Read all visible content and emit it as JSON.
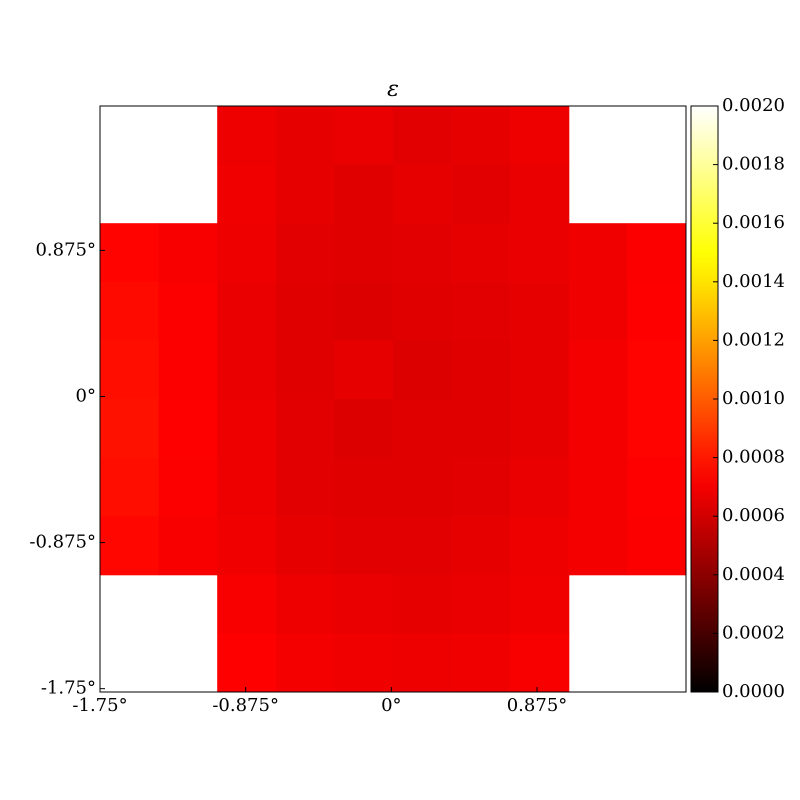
{
  "chart_data": {
    "type": "heatmap",
    "title": "ε",
    "xlim": [
      -1.75,
      1.77
    ],
    "ylim": [
      -1.77,
      1.74
    ],
    "xticks": [
      {
        "value": -1.75,
        "label": "-1.75°"
      },
      {
        "value": -0.875,
        "label": "-0.875°"
      },
      {
        "value": 0,
        "label": "0°"
      },
      {
        "value": 0.875,
        "label": "0.875°"
      }
    ],
    "yticks": [
      {
        "value": -1.75,
        "label": "-1.75°"
      },
      {
        "value": -0.875,
        "label": "-0.875°"
      },
      {
        "value": 0,
        "label": "0°"
      },
      {
        "value": 0.875,
        "label": "0.875°"
      }
    ],
    "colormap": "hot",
    "zlim": [
      0,
      0.002
    ],
    "zticks": [
      {
        "value": 0,
        "label": "0.0000"
      },
      {
        "value": 0.0002,
        "label": "0.0002"
      },
      {
        "value": 0.0004,
        "label": "0.0004"
      },
      {
        "value": 0.0006,
        "label": "0.0006"
      },
      {
        "value": 0.0008,
        "label": "0.0008"
      },
      {
        "value": 0.001,
        "label": "0.0010"
      },
      {
        "value": 0.0012,
        "label": "0.0012"
      },
      {
        "value": 0.0014,
        "label": "0.0014"
      },
      {
        "value": 0.0016,
        "label": "0.0016"
      },
      {
        "value": 0.0018,
        "label": "0.0018"
      },
      {
        "value": 0.002,
        "label": "0.0020"
      }
    ],
    "z": [
      [
        null,
        null,
        0.00068,
        0.00066,
        0.00067,
        0.00065,
        0.00066,
        0.00068,
        null,
        null
      ],
      [
        null,
        null,
        0.00069,
        0.00066,
        0.00064,
        0.00066,
        0.00065,
        0.00067,
        null,
        null
      ],
      [
        0.00074,
        0.00071,
        0.00068,
        0.00065,
        0.00064,
        0.00065,
        0.00066,
        0.00067,
        0.00069,
        0.00072
      ],
      [
        0.00076,
        0.00072,
        0.00067,
        0.00064,
        0.00063,
        0.00064,
        0.00065,
        0.00066,
        0.00069,
        0.00073
      ],
      [
        0.00077,
        0.00072,
        0.00067,
        0.00064,
        0.00066,
        0.00063,
        0.00064,
        0.00066,
        0.0007,
        0.00074
      ],
      [
        0.00078,
        0.00073,
        0.00068,
        0.00065,
        0.00063,
        0.00064,
        0.00064,
        0.00066,
        0.0007,
        0.00074
      ],
      [
        0.00077,
        0.00072,
        0.00068,
        0.00065,
        0.00064,
        0.00064,
        0.00065,
        0.00067,
        0.0007,
        0.00073
      ],
      [
        0.00075,
        0.00071,
        0.00069,
        0.00066,
        0.00065,
        0.00065,
        0.00066,
        0.00068,
        0.0007,
        0.00072
      ],
      [
        null,
        null,
        0.00071,
        0.00068,
        0.00067,
        0.00066,
        0.00067,
        0.00069,
        null,
        null
      ],
      [
        null,
        null,
        0.00073,
        0.0007,
        0.00069,
        0.00068,
        0.00069,
        0.00071,
        null,
        null
      ]
    ]
  }
}
